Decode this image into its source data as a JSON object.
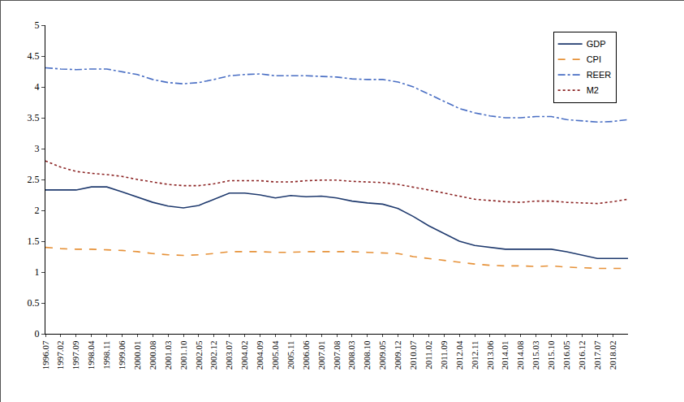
{
  "chart_data": {
    "type": "line",
    "categories": [
      "1996.07",
      "1997.02",
      "1997.09",
      "1998.04",
      "1998.11",
      "1999.06",
      "2000.01",
      "2000.08",
      "2001.03",
      "2001.10",
      "2002.05",
      "2002.12",
      "2003.07",
      "2004.02",
      "2004.09",
      "2005.04",
      "2005.11",
      "2006.06",
      "2007.01",
      "2007.08",
      "2008.03",
      "2008.10",
      "2009.05",
      "2009.12",
      "2010.07",
      "2011.02",
      "2011.09",
      "2012.04",
      "2012.11",
      "2013.06",
      "2014.01",
      "2014.08",
      "2015.03",
      "2015.10",
      "2016.05",
      "2016.12",
      "2017.07",
      "2018.02",
      null
    ],
    "series": [
      {
        "name": "GDP",
        "color": "#1f3a6e",
        "line_style": "solid",
        "values": [
          2.33,
          2.33,
          2.33,
          2.38,
          2.38,
          2.3,
          2.22,
          2.13,
          2.07,
          2.04,
          2.08,
          2.18,
          2.28,
          2.28,
          2.25,
          2.2,
          2.24,
          2.22,
          2.23,
          2.2,
          2.15,
          2.12,
          2.1,
          2.03,
          1.9,
          1.75,
          1.62,
          1.5,
          1.43,
          1.4,
          1.37,
          1.37,
          1.37,
          1.37,
          1.33,
          1.27,
          1.22,
          1.22,
          1.22
        ]
      },
      {
        "name": "CPI",
        "color": "#e69138",
        "line_style": "dash",
        "values": [
          1.4,
          1.38,
          1.37,
          1.37,
          1.36,
          1.35,
          1.33,
          1.3,
          1.28,
          1.27,
          1.28,
          1.3,
          1.33,
          1.33,
          1.33,
          1.32,
          1.32,
          1.33,
          1.33,
          1.33,
          1.33,
          1.32,
          1.31,
          1.3,
          1.25,
          1.22,
          1.19,
          1.16,
          1.13,
          1.11,
          1.1,
          1.1,
          1.09,
          1.1,
          1.08,
          1.07,
          1.06,
          1.06,
          1.06
        ]
      },
      {
        "name": "REER",
        "color": "#4a6fc4",
        "line_style": "dashdot",
        "values": [
          4.31,
          4.29,
          4.28,
          4.29,
          4.29,
          4.25,
          4.2,
          4.12,
          4.07,
          4.05,
          4.07,
          4.12,
          4.18,
          4.2,
          4.21,
          4.18,
          4.18,
          4.18,
          4.17,
          4.16,
          4.13,
          4.12,
          4.12,
          4.08,
          4.0,
          3.88,
          3.76,
          3.65,
          3.58,
          3.53,
          3.5,
          3.5,
          3.52,
          3.52,
          3.47,
          3.45,
          3.43,
          3.44,
          3.47
        ]
      },
      {
        "name": "M2",
        "color": "#8b2323",
        "line_style": "dot",
        "values": [
          2.8,
          2.7,
          2.63,
          2.6,
          2.58,
          2.55,
          2.5,
          2.46,
          2.42,
          2.4,
          2.4,
          2.43,
          2.48,
          2.48,
          2.48,
          2.46,
          2.46,
          2.48,
          2.49,
          2.49,
          2.47,
          2.46,
          2.45,
          2.42,
          2.38,
          2.33,
          2.28,
          2.23,
          2.18,
          2.16,
          2.14,
          2.13,
          2.15,
          2.15,
          2.13,
          2.12,
          2.11,
          2.14,
          2.18
        ]
      }
    ],
    "ylim": [
      0,
      5
    ],
    "yticks": [
      0,
      0.5,
      1,
      1.5,
      2,
      2.5,
      3,
      3.5,
      4,
      4.5,
      5
    ],
    "grid": false,
    "legend": "top-right"
  }
}
